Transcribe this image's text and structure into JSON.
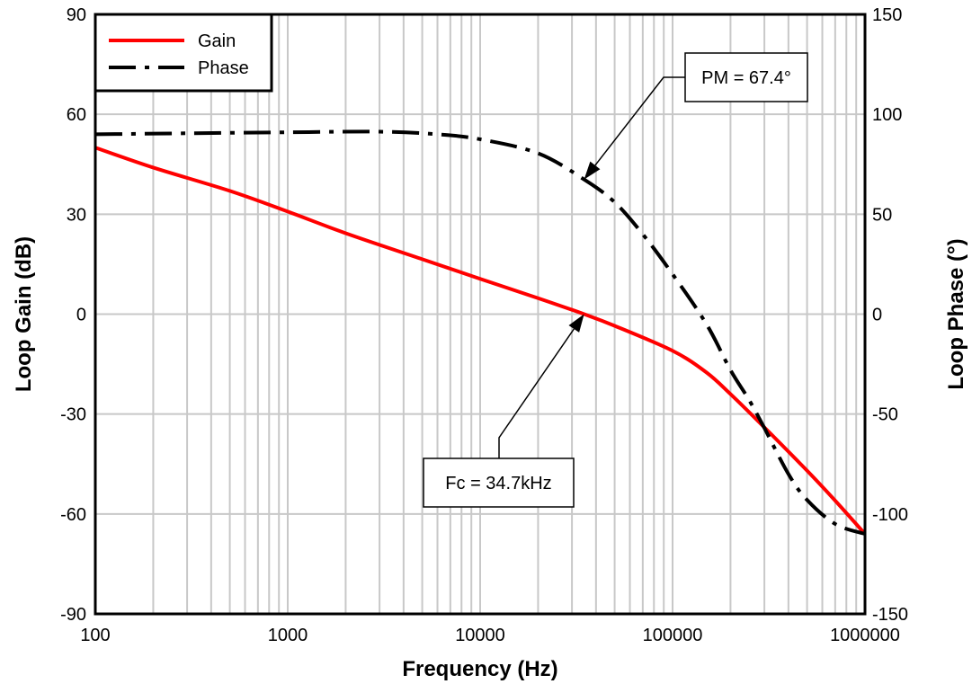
{
  "chart_data": {
    "type": "line",
    "xlabel": "Frequency (Hz)",
    "ylabel_left": "Loop Gain (dB)",
    "ylabel_right": "Loop Phase (°)",
    "x_scale": "log",
    "xlim": [
      100,
      1000000
    ],
    "ylim_left": [
      -90,
      90
    ],
    "ylim_right": [
      -150,
      150
    ],
    "x_ticks": [
      "100",
      "1000",
      "10000",
      "100000",
      "1000000"
    ],
    "y_ticks_left": [
      "90",
      "60",
      "30",
      "0",
      "-30",
      "-60",
      "-90"
    ],
    "y_ticks_right": [
      "150",
      "100",
      "50",
      "0",
      "-50",
      "-100",
      "-150"
    ],
    "grid": true,
    "legend_position": "top-left",
    "series": [
      {
        "name": "Gain",
        "axis": "left",
        "color": "#ff0000",
        "style": "solid",
        "x": [
          100,
          200,
          500,
          1000,
          2000,
          5000,
          10000,
          20000,
          34700,
          50000,
          100000,
          150000,
          200000,
          300000,
          500000,
          700000,
          1000000
        ],
        "y": [
          50,
          44,
          37,
          30.8,
          24.3,
          16.5,
          10.6,
          4.8,
          0,
          -3.5,
          -11,
          -17.5,
          -24,
          -34,
          -47,
          -56,
          -66
        ]
      },
      {
        "name": "Phase",
        "axis": "right",
        "color": "#000000",
        "style": "dashdot",
        "x": [
          100,
          300,
          1000,
          3000,
          6000,
          10000,
          20000,
          34700,
          50000,
          70000,
          100000,
          150000,
          200000,
          250000,
          300000,
          400000,
          500000,
          700000,
          1000000
        ],
        "y": [
          90,
          90.5,
          91,
          91.3,
          90,
          87.5,
          80.5,
          67.4,
          56,
          40,
          20,
          -5,
          -28,
          -43,
          -57,
          -80,
          -93,
          -105,
          -110
        ]
      }
    ],
    "annotations": [
      {
        "text": "PM = 67.4°",
        "x": 34700,
        "y": 67.4,
        "axis": "right"
      },
      {
        "text": "Fc = 34.7kHz",
        "x": 34700,
        "y": 0,
        "axis": "left"
      }
    ]
  }
}
